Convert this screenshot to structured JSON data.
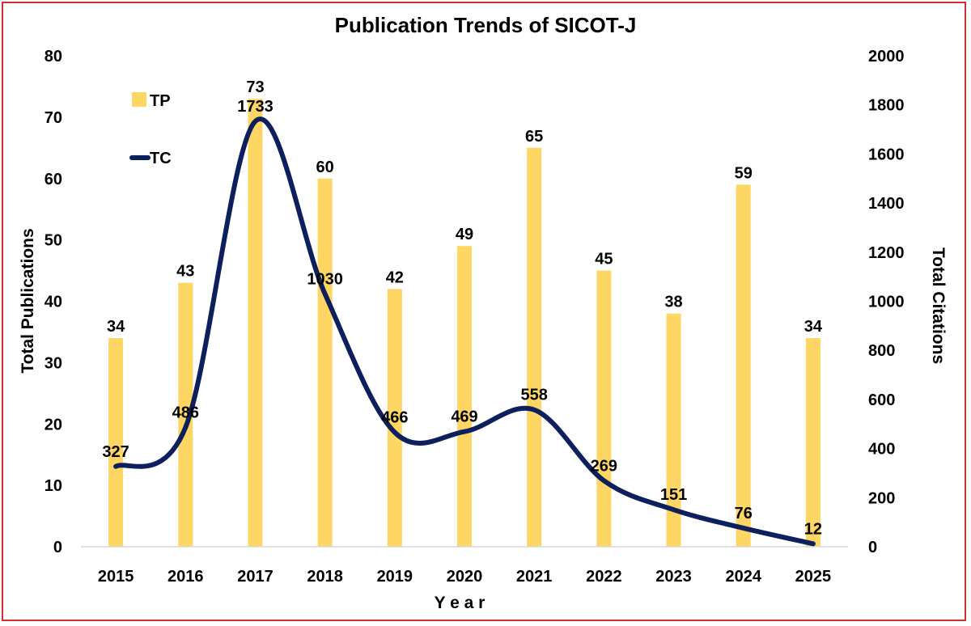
{
  "chart_data": {
    "type": "bar",
    "title": "Publication Trends of SICOT-J",
    "xlabel": "Y e a r",
    "ylabel": "Total Publications",
    "y2label": "Total Citations",
    "categories": [
      "2015",
      "2016",
      "2017",
      "2018",
      "2019",
      "2020",
      "2021",
      "2022",
      "2023",
      "2024",
      "2025"
    ],
    "ylim": [
      0,
      80
    ],
    "y2lim": [
      0,
      2000
    ],
    "yticks": [
      "0",
      "10",
      "20",
      "30",
      "40",
      "50",
      "60",
      "70",
      "80"
    ],
    "y2ticks": [
      "0",
      "200",
      "400",
      "600",
      "800",
      "1000",
      "1200",
      "1400",
      "1600",
      "1800",
      "2000"
    ],
    "legend_position": "top-left",
    "series": [
      {
        "name": "TP",
        "type": "bar",
        "axis": "left",
        "color": "#fdd663",
        "values": [
          34,
          43,
          73,
          60,
          42,
          49,
          65,
          45,
          38,
          59,
          34
        ]
      },
      {
        "name": "TC",
        "type": "line",
        "axis": "right",
        "color": "#0d1f5c",
        "smooth": true,
        "values": [
          327,
          486,
          1733,
          1030,
          466,
          469,
          558,
          269,
          151,
          76,
          12
        ]
      }
    ]
  }
}
